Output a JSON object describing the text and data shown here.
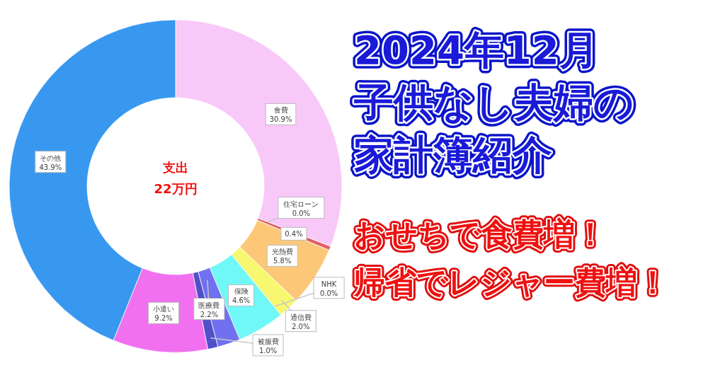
{
  "chart_data": {
    "type": "donut",
    "title": "2024年12月",
    "subtitle": "子供なし夫婦の家計簿紹介",
    "categories": [
      "食費",
      "住宅ローン",
      null,
      "光熱費",
      "通信費",
      "NHK",
      "保険",
      "医療費",
      "被服費",
      "小遣い",
      "その他"
    ],
    "values": [
      30.9,
      0.0,
      0.4,
      5.8,
      2.0,
      0.0,
      4.6,
      2.2,
      1.0,
      9.2,
      43.9
    ],
    "value_labels": [
      "30.9%",
      "0.0%",
      "0.4%",
      "5.8%",
      "2.0%",
      "0.0%",
      "4.6%",
      "2.2%",
      "1.0%",
      "9.2%",
      "43.9%"
    ],
    "colors": [
      "#f8c8f8",
      "#c8c8c8",
      "#e06068",
      "#fcc878",
      "#f8f870",
      "#e0e0a0",
      "#70f8f8",
      "#7070f0",
      "#5050c8",
      "#f070f0",
      "#3898f0"
    ],
    "annotations": [
      "支出",
      "22万円",
      "おせちで食費増！",
      "帰省でレジャー費増！"
    ]
  }
}
